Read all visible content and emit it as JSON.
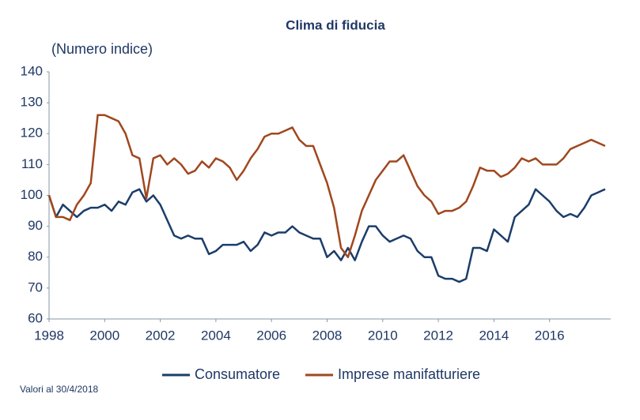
{
  "chart_data": {
    "type": "line",
    "title": "Clima di fiducia",
    "y_label": "(Numero indice)",
    "note": "Valori al 30/4/2018",
    "x": [
      1998,
      1998.25,
      1998.5,
      1998.75,
      1999,
      1999.25,
      1999.5,
      1999.75,
      2000,
      2000.25,
      2000.5,
      2000.75,
      2001,
      2001.25,
      2001.5,
      2001.75,
      2002,
      2002.25,
      2002.5,
      2002.75,
      2003,
      2003.25,
      2003.5,
      2003.75,
      2004,
      2004.25,
      2004.5,
      2004.75,
      2005,
      2005.25,
      2005.5,
      2005.75,
      2006,
      2006.25,
      2006.5,
      2006.75,
      2007,
      2007.25,
      2007.5,
      2007.75,
      2008,
      2008.25,
      2008.5,
      2008.75,
      2009,
      2009.25,
      2009.5,
      2009.75,
      2010,
      2010.25,
      2010.5,
      2010.75,
      2011,
      2011.25,
      2011.5,
      2011.75,
      2012,
      2012.25,
      2012.5,
      2012.75,
      2013,
      2013.25,
      2013.5,
      2013.75,
      2014,
      2014.25,
      2014.5,
      2014.75,
      2015,
      2015.25,
      2015.5,
      2015.75,
      2016,
      2016.25,
      2016.5,
      2016.75,
      2017,
      2017.25,
      2017.5,
      2017.75,
      2018
    ],
    "series": [
      {
        "name": "Consumatore",
        "color": "#1b3d6b",
        "values": [
          100,
          93,
          97,
          95,
          93,
          95,
          96,
          96,
          97,
          95,
          98,
          97,
          101,
          102,
          98,
          100,
          97,
          92,
          87,
          86,
          87,
          86,
          86,
          81,
          82,
          84,
          84,
          84,
          85,
          82,
          84,
          88,
          87,
          88,
          88,
          90,
          88,
          87,
          86,
          86,
          80,
          82,
          79,
          83,
          79,
          85,
          90,
          90,
          87,
          85,
          86,
          87,
          86,
          82,
          80,
          80,
          74,
          73,
          73,
          72,
          73,
          83,
          83,
          82,
          89,
          87,
          85,
          93,
          95,
          97,
          102,
          100,
          98,
          95,
          93,
          94,
          93,
          96,
          100,
          101,
          102
        ]
      },
      {
        "name": "Imprese manifatturiere",
        "color": "#a0471e",
        "values": [
          100,
          93,
          93,
          92,
          97,
          100,
          104,
          126,
          126,
          125,
          124,
          120,
          113,
          112,
          99,
          112,
          113,
          110,
          112,
          110,
          107,
          108,
          111,
          109,
          112,
          111,
          109,
          105,
          108,
          112,
          115,
          119,
          120,
          120,
          121,
          122,
          118,
          116,
          116,
          110,
          104,
          96,
          83,
          80,
          87,
          95,
          100,
          105,
          108,
          111,
          111,
          113,
          108,
          103,
          100,
          98,
          94,
          95,
          95,
          96,
          98,
          103,
          109,
          108,
          108,
          106,
          107,
          109,
          112,
          111,
          112,
          110,
          110,
          110,
          112,
          115,
          116,
          117,
          118,
          117,
          116
        ]
      }
    ],
    "xlim": [
      1998,
      2018.2
    ],
    "xticks": [
      1998,
      2000,
      2002,
      2004,
      2006,
      2008,
      2010,
      2012,
      2014,
      2016
    ],
    "ylim": [
      60,
      140
    ],
    "yticks": [
      60,
      70,
      80,
      90,
      100,
      110,
      120,
      130,
      140
    ],
    "grid": false,
    "legend": "bottom"
  }
}
